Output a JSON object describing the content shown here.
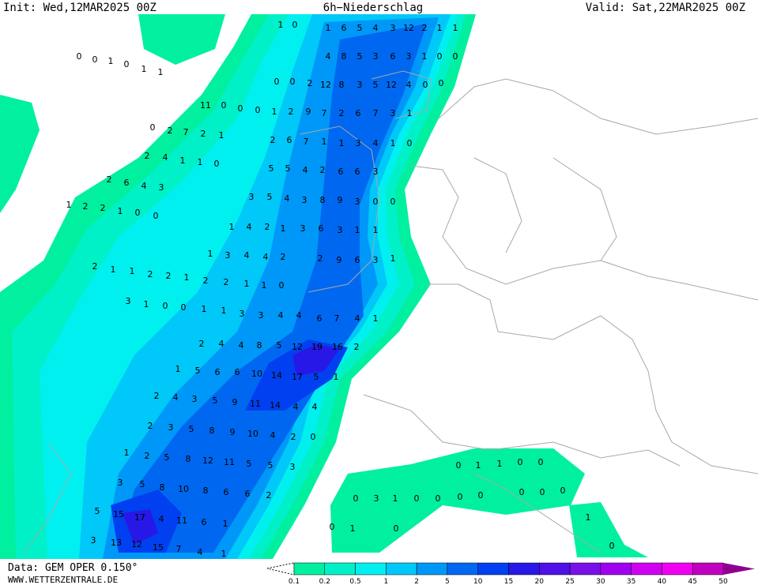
{
  "header": {
    "init": "Init: Wed,12MAR2025 00Z",
    "title": "6h−Niederschlag",
    "valid": "Valid: Sat,22MAR2025 00Z"
  },
  "footer": {
    "source": "Data: GEM OPER 0.150°",
    "site": "WWW.WETTERZENTRALE.DE"
  },
  "legend": {
    "labels": [
      "0.1",
      "0.2",
      "0.5",
      "1",
      "2",
      "5",
      "10",
      "15",
      "20",
      "25",
      "30",
      "35",
      "40",
      "45",
      "50"
    ],
    "colors": [
      "#00f0a0",
      "#00f0c8",
      "#00f0f0",
      "#00c8f8",
      "#0098f8",
      "#0068f0",
      "#0040f0",
      "#2818e8",
      "#5010e8",
      "#7810e8",
      "#a000f0",
      "#d000f0",
      "#f000f0",
      "#c000c0",
      "#900090"
    ]
  },
  "map_values": [
    1,
    0,
    1,
    6,
    5,
    4,
    3,
    12,
    2,
    1,
    1,
    4,
    8,
    5,
    3,
    6,
    3,
    1,
    0,
    0,
    0,
    0,
    2,
    12,
    8,
    3,
    5,
    12,
    4,
    0,
    0,
    0,
    1,
    2,
    9,
    7,
    2,
    6,
    7,
    3,
    1,
    2,
    6,
    7,
    1,
    1,
    3,
    4,
    1,
    0,
    5,
    5,
    4,
    2,
    6,
    6,
    3,
    3,
    5,
    4,
    3,
    8,
    9,
    3,
    0,
    0,
    1,
    4,
    2,
    1,
    3,
    6,
    3,
    1,
    1,
    1,
    3,
    4,
    4,
    2,
    2,
    9,
    6,
    3,
    1,
    4,
    6,
    7,
    4,
    1,
    2,
    4,
    4,
    8,
    5,
    12,
    19,
    16,
    2,
    1,
    5,
    6,
    6,
    10,
    14,
    17,
    5,
    1,
    2,
    4,
    3,
    5,
    9,
    11,
    14,
    4,
    4,
    2,
    3,
    5,
    8,
    9,
    10,
    4,
    2,
    0,
    1,
    2,
    5,
    8,
    12,
    11,
    5,
    5,
    3,
    3,
    5,
    8,
    10,
    8,
    6,
    6,
    2,
    5,
    15,
    17,
    4,
    11,
    6,
    1,
    3,
    13,
    12,
    15,
    7,
    4,
    1,
    0,
    0,
    1,
    0,
    1,
    1,
    11,
    0,
    0,
    0,
    2,
    7,
    2,
    1,
    2,
    4,
    1,
    1,
    0,
    2,
    6,
    4,
    3,
    1,
    2,
    2,
    1,
    0,
    0,
    2,
    1,
    1,
    2,
    2,
    1,
    2,
    2,
    1,
    1,
    0,
    3,
    1,
    0,
    0,
    1,
    1,
    3,
    3,
    4,
    0,
    1,
    1,
    0,
    0,
    0,
    3,
    1,
    0,
    0,
    0,
    0,
    0,
    0,
    0,
    0,
    1,
    0,
    1,
    0
  ]
}
